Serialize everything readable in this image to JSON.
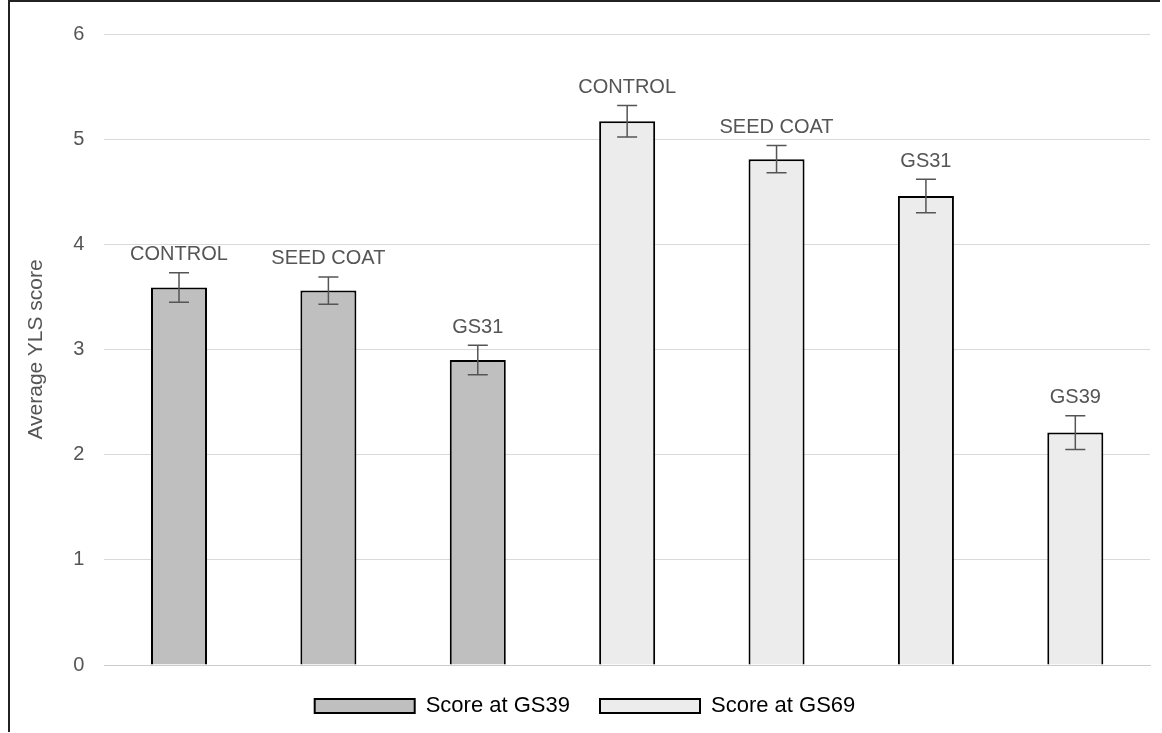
{
  "chart_data": {
    "type": "bar",
    "ylabel": "Average YLS score",
    "categories": [
      "CONTROL",
      "SEED COAT",
      "GS31",
      "CONTROL",
      "SEED COAT",
      "GS31",
      "GS39"
    ],
    "series": [
      {
        "name": "Score at GS39",
        "color": "#bfbfbf",
        "values": [
          3.59,
          3.56,
          2.9,
          null,
          null,
          null,
          null
        ],
        "errors": [
          0.14,
          0.13,
          0.14,
          null,
          null,
          null,
          null
        ]
      },
      {
        "name": "Score at GS69",
        "color": "#ececec",
        "values": [
          null,
          null,
          null,
          5.17,
          4.81,
          4.46,
          2.21
        ],
        "errors": [
          null,
          null,
          null,
          0.15,
          0.13,
          0.16,
          0.16
        ]
      }
    ],
    "ylim": [
      0,
      6
    ],
    "yticks": [
      0,
      1,
      2,
      3,
      4,
      5,
      6
    ],
    "grid": "y",
    "legend": "bottom",
    "tick_labels": "y"
  }
}
